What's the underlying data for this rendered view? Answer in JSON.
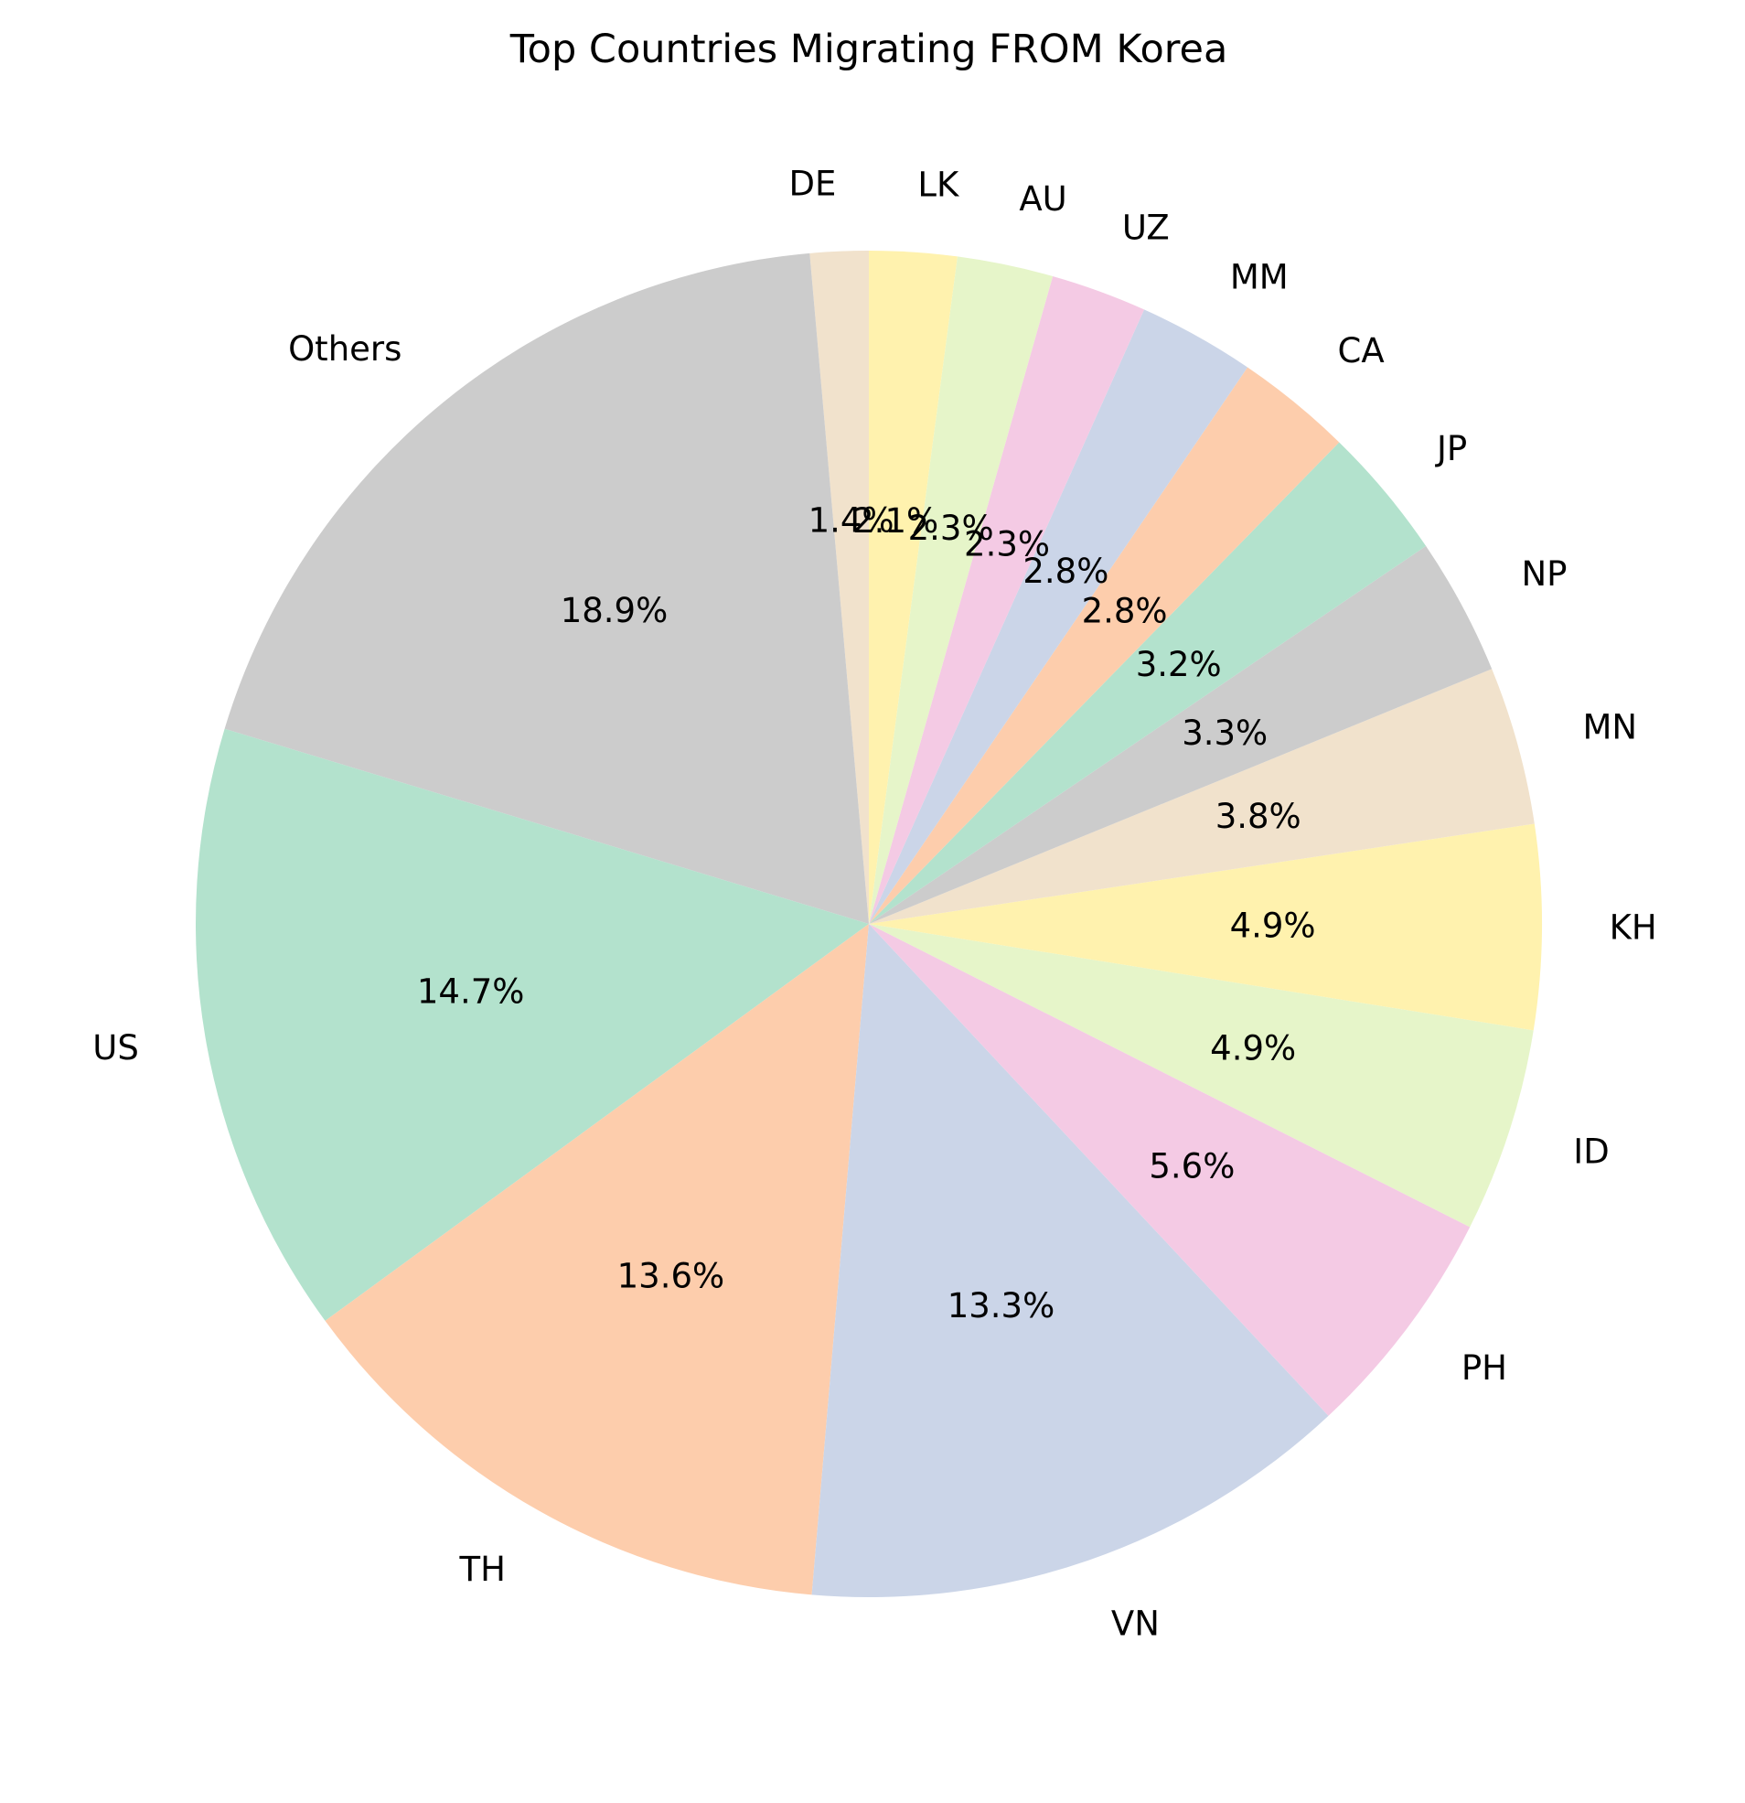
{
  "chart_data": {
    "type": "pie",
    "title": "Top Countries Migrating FROM Korea",
    "start_angle_deg": 90,
    "direction": "counterclockwise",
    "slices": [
      {
        "label": "DE",
        "value": 1.4,
        "pct_label": "1.4%",
        "color": "#f1e2cc"
      },
      {
        "label": "Others",
        "value": 18.9,
        "pct_label": "18.9%",
        "color": "#cccccc"
      },
      {
        "label": "US",
        "value": 14.7,
        "pct_label": "14.7%",
        "color": "#b3e2cd"
      },
      {
        "label": "TH",
        "value": 13.6,
        "pct_label": "13.6%",
        "color": "#fdcdac"
      },
      {
        "label": "VN",
        "value": 13.3,
        "pct_label": "13.3%",
        "color": "#cbd5e8"
      },
      {
        "label": "PH",
        "value": 5.6,
        "pct_label": "5.6%",
        "color": "#f4cae4"
      },
      {
        "label": "ID",
        "value": 4.9,
        "pct_label": "4.9%",
        "color": "#e6f5c9"
      },
      {
        "label": "KH",
        "value": 4.9,
        "pct_label": "4.9%",
        "color": "#fff2ae"
      },
      {
        "label": "MN",
        "value": 3.8,
        "pct_label": "3.8%",
        "color": "#f1e2cc"
      },
      {
        "label": "NP",
        "value": 3.3,
        "pct_label": "3.3%",
        "color": "#cccccc"
      },
      {
        "label": "JP",
        "value": 3.2,
        "pct_label": "3.2%",
        "color": "#b3e2cd"
      },
      {
        "label": "CA",
        "value": 2.8,
        "pct_label": "2.8%",
        "color": "#fdcdac"
      },
      {
        "label": "MM",
        "value": 2.8,
        "pct_label": "2.8%",
        "color": "#cbd5e8"
      },
      {
        "label": "UZ",
        "value": 2.3,
        "pct_label": "2.3%",
        "color": "#f4cae4"
      },
      {
        "label": "AU",
        "value": 2.3,
        "pct_label": "2.3%",
        "color": "#e6f5c9"
      },
      {
        "label": "LK",
        "value": 2.1,
        "pct_label": "2.1%",
        "color": "#fff2ae"
      }
    ]
  }
}
